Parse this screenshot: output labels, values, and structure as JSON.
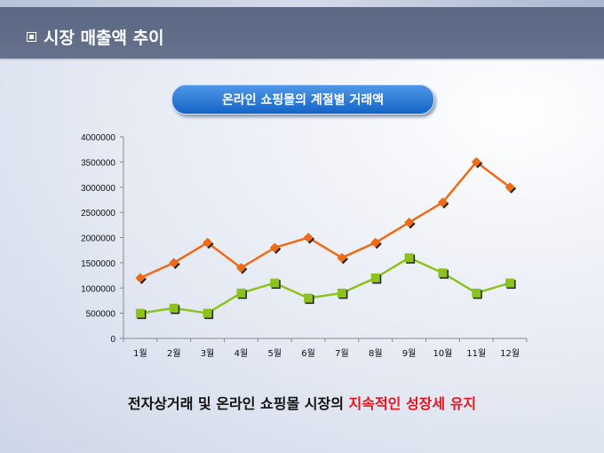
{
  "header": {
    "title": "시장 매출액 추이"
  },
  "chart_data": {
    "type": "line",
    "title": "온라인 쇼핑몰의 계절별 거래액",
    "categories": [
      "1월",
      "2월",
      "3월",
      "4월",
      "5월",
      "6월",
      "7월",
      "8월",
      "9월",
      "10월",
      "11월",
      "12월"
    ],
    "yticks": [
      "0",
      "500000",
      "1000000",
      "1500000",
      "2000000",
      "2500000",
      "3000000",
      "3500000",
      "4000000"
    ],
    "ylim": [
      0,
      4000000
    ],
    "grid": false,
    "series": [
      {
        "name": "series-orange",
        "color": "#f06a14",
        "marker": "diamond",
        "values": [
          1200000,
          1500000,
          1900000,
          1400000,
          1800000,
          2000000,
          1600000,
          1900000,
          2300000,
          2700000,
          3500000,
          3000000
        ]
      },
      {
        "name": "series-green",
        "color": "#8cc21e",
        "marker": "square",
        "values": [
          500000,
          600000,
          500000,
          900000,
          1100000,
          800000,
          900000,
          1200000,
          1600000,
          1300000,
          900000,
          1100000
        ]
      }
    ]
  },
  "footer": {
    "text_black": "전자상거래 및 온라인 쇼핑몰 시장의 ",
    "text_red": "지속적인 성장세 유지"
  }
}
